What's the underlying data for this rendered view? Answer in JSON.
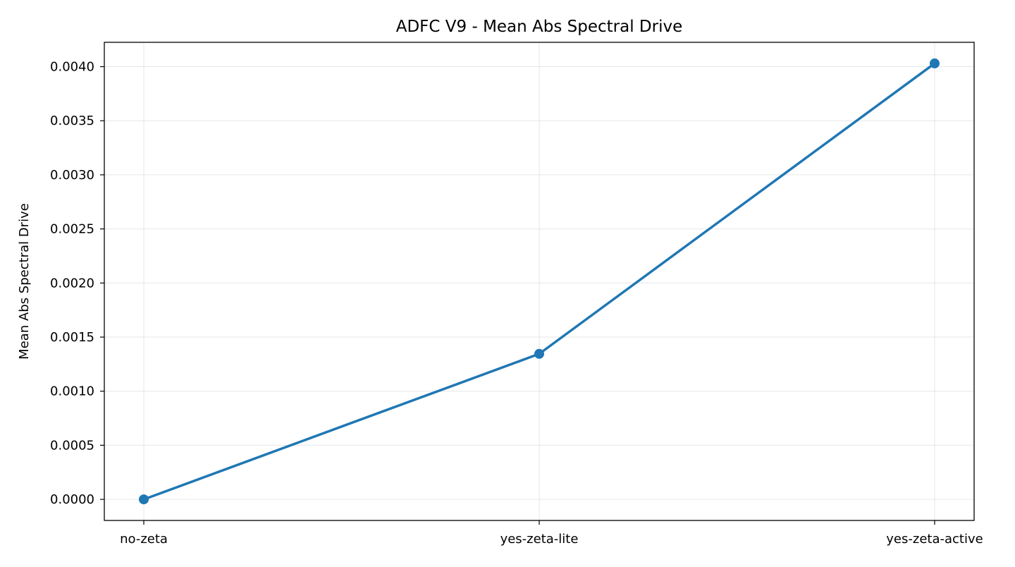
{
  "chart_data": {
    "type": "line",
    "title": "ADFC V9 - Mean Abs Spectral Drive",
    "xlabel": "",
    "ylabel": "Mean Abs Spectral Drive",
    "categories": [
      "no-zeta",
      "yes-zeta-lite",
      "yes-zeta-active"
    ],
    "series": [
      {
        "values": [
          0.0,
          0.001345,
          0.00403
        ],
        "color": "#1f77b4",
        "marker": "circle"
      }
    ],
    "ylim": [
      -0.000195,
      0.004225
    ],
    "yticks": [
      0.0,
      0.0005,
      0.001,
      0.0015,
      0.002,
      0.0025,
      0.003,
      0.0035,
      0.004
    ],
    "ytick_labels": [
      "0.0000",
      "0.0005",
      "0.0010",
      "0.0015",
      "0.0020",
      "0.0025",
      "0.0030",
      "0.0035",
      "0.0040"
    ],
    "grid": true,
    "legend": "none"
  }
}
